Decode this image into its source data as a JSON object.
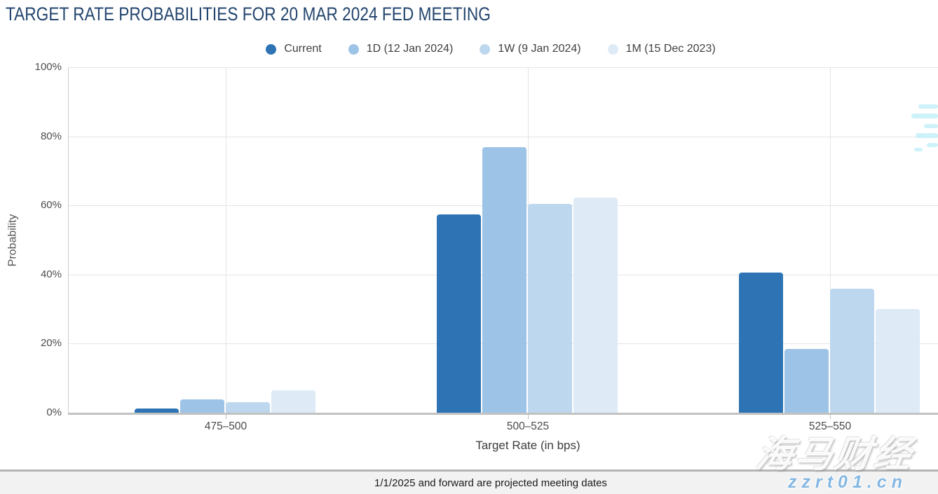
{
  "title": "TARGET RATE PROBABILITIES FOR 20 MAR 2024 FED MEETING",
  "legend": {
    "items": [
      {
        "label": "Current",
        "color": "#2e74b5"
      },
      {
        "label": "1D (12 Jan 2024)",
        "color": "#9dc3e6"
      },
      {
        "label": "1W (9 Jan 2024)",
        "color": "#bdd7ee"
      },
      {
        "label": "1M (15 Dec 2023)",
        "color": "#deeaf6"
      }
    ]
  },
  "chart_data": {
    "type": "bar",
    "title": "TARGET RATE PROBABILITIES FOR 20 MAR 2024 FED MEETING",
    "categories": [
      "475–500",
      "500–525",
      "525–550"
    ],
    "series": [
      {
        "name": "Current",
        "color": "#2e74b5",
        "values": [
          1.2,
          57.4,
          40.6
        ]
      },
      {
        "name": "1D (12 Jan 2024)",
        "color": "#9dc3e6",
        "values": [
          3.8,
          76.8,
          18.5
        ]
      },
      {
        "name": "1W (9 Jan 2024)",
        "color": "#bdd7ee",
        "values": [
          3.0,
          60.4,
          35.9
        ]
      },
      {
        "name": "1M (15 Dec 2023)",
        "color": "#deeaf6",
        "values": [
          6.5,
          62.3,
          30.1
        ]
      }
    ],
    "xlabel": "Target Rate (in bps)",
    "ylabel": "Probability",
    "ylim": [
      0,
      100
    ],
    "ytick_labels": [
      "0%",
      "20%",
      "40%",
      "60%",
      "80%",
      "100%"
    ],
    "ytick_values": [
      0,
      20,
      40,
      60,
      80,
      100
    ],
    "grid": true,
    "legend_position": "top"
  },
  "footer": {
    "note": "1/1/2025 and forward are projected meeting dates"
  },
  "watermark": {
    "cn_text": "海马财经",
    "url_text": "zzrt01.cn"
  }
}
